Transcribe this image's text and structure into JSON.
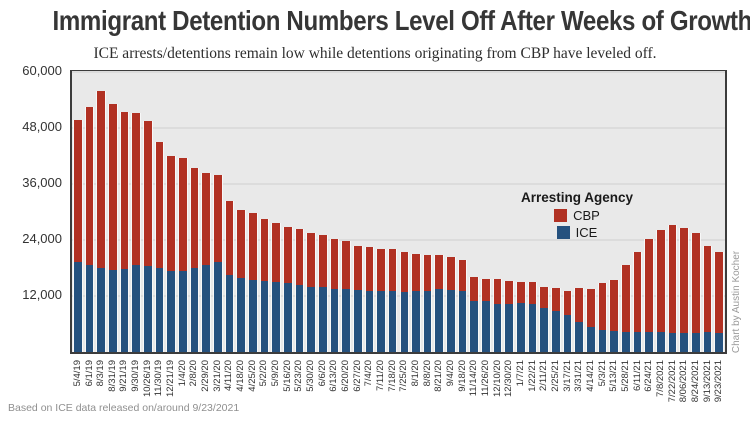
{
  "title": "Immigrant Detention Numbers Level Off After Weeks of Growth",
  "subtitle": "ICE arrests/detentions remain low while detentions originating from CBP have leveled off.",
  "footer": "Based on ICE data released on/around 9/23/2021",
  "credit": "Chart by Austin Kocher",
  "legend": {
    "title": "Arresting Agency",
    "items": [
      {
        "label": "CBP",
        "color": "#b13123"
      },
      {
        "label": "ICE",
        "color": "#25517e"
      }
    ]
  },
  "colors": {
    "cbp": "#b13123",
    "ice": "#25517e",
    "panel_bg": "#e9e9e9",
    "gridline": "#dcdcdc",
    "border": "#3c3c3c"
  },
  "y_axis": {
    "tick_labels": [
      "60,000",
      "48,000",
      "36,000",
      "24,000",
      "12,000"
    ],
    "tick_values": [
      60000,
      48000,
      36000,
      24000,
      12000
    ],
    "max": 60000
  },
  "chart_data": {
    "type": "bar",
    "stacked": true,
    "title": "Immigrant Detention Numbers Level Off After Weeks of Growth",
    "xlabel": "",
    "ylabel": "",
    "ylim": [
      0,
      60000
    ],
    "grid": true,
    "legend_position": "right-middle",
    "categories": [
      "5/4/19",
      "6/1/19",
      "8/3/19",
      "8/31/19",
      "9/21/19",
      "9/30/19",
      "10/26/19",
      "11/30/19",
      "12/21/19",
      "1/4/20",
      "2/8/20",
      "2/29/20",
      "3/21/20",
      "4/11/20",
      "4/18/20",
      "4/25/20",
      "5/2/20",
      "5/9/20",
      "5/16/20",
      "5/23/20",
      "5/30/20",
      "6/6/20",
      "6/13/20",
      "6/20/20",
      "6/27/20",
      "7/4/20",
      "7/11/20",
      "7/18/20",
      "7/25/20",
      "8/1/20",
      "8/8/20",
      "8/21/20",
      "9/4/20",
      "9/18/20",
      "11/14/20",
      "11/26/20",
      "12/10/20",
      "12/30/20",
      "1/7/21",
      "1/22/21",
      "2/11/21",
      "2/25/21",
      "3/17/21",
      "3/31/21",
      "4/14/21",
      "5/3/21",
      "5/13/21",
      "5/28/21",
      "6/11/21",
      "6/24/21",
      "7/8/2021",
      "7/22/2021",
      "8/06/2021",
      "8/24/2021",
      "9/13/2021",
      "9/23/2021"
    ],
    "series": [
      {
        "name": "ICE",
        "color": "#25517e",
        "values": [
          19200,
          18700,
          18100,
          17600,
          17800,
          18700,
          18500,
          17900,
          17300,
          17300,
          18000,
          18600,
          19200,
          16600,
          15900,
          15400,
          15200,
          15000,
          14700,
          14400,
          14000,
          14000,
          13500,
          13500,
          13300,
          13000,
          13100,
          13000,
          12800,
          13000,
          13100,
          13400,
          13300,
          13000,
          11000,
          10900,
          10300,
          10200,
          10400,
          10200,
          9500,
          8800,
          7900,
          6500,
          5400,
          4700,
          4400,
          4300,
          4300,
          4300,
          4300,
          4100,
          4100,
          4100,
          4200,
          4000
        ]
      },
      {
        "name": "CBP",
        "color": "#b13123",
        "values": [
          30600,
          33900,
          37800,
          35500,
          33600,
          32500,
          31100,
          27000,
          24700,
          24300,
          21500,
          19800,
          18800,
          15700,
          14600,
          14300,
          13400,
          12700,
          12100,
          11900,
          11600,
          11100,
          10700,
          10200,
          9400,
          9500,
          9000,
          9000,
          8700,
          8100,
          7600,
          7400,
          7100,
          6700,
          5100,
          4800,
          5400,
          5000,
          4600,
          4800,
          4500,
          5000,
          5100,
          7300,
          8100,
          10000,
          11000,
          14300,
          17200,
          19900,
          21900,
          23100,
          22400,
          21300,
          18600,
          17500
        ]
      }
    ]
  }
}
